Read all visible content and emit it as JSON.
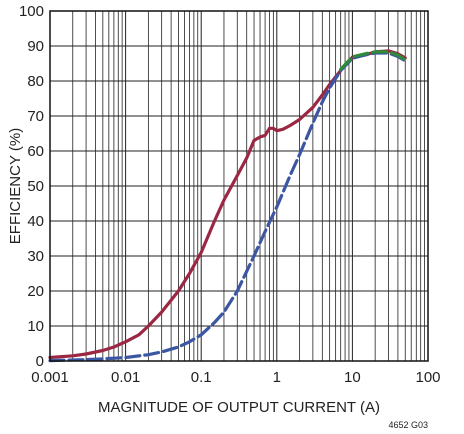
{
  "chart_data": {
    "type": "line",
    "title": "",
    "xlabel": "MAGNITUDE OF OUTPUT CURRENT (A)",
    "ylabel": "EFFICIENCY (%)",
    "xscale": "log",
    "xlim": [
      0.001,
      100
    ],
    "ylim": [
      0,
      100
    ],
    "grid": true,
    "x_ticks": [
      0.001,
      0.01,
      0.1,
      1,
      10,
      100
    ],
    "x_tick_labels": [
      "0.001",
      "0.01",
      "0.1",
      "1",
      "10",
      "100"
    ],
    "y_ticks": [
      0,
      10,
      20,
      30,
      40,
      50,
      60,
      70,
      80,
      90,
      100
    ],
    "y_tick_labels": [
      "0",
      "10",
      "20",
      "30",
      "40",
      "50",
      "60",
      "70",
      "80",
      "90",
      "100"
    ],
    "code_label": "4652 G03",
    "series": [
      {
        "color": "#9b2743",
        "style": "solid",
        "points": [
          [
            0.001,
            1
          ],
          [
            0.002,
            1.5
          ],
          [
            0.003,
            2
          ],
          [
            0.005,
            3
          ],
          [
            0.007,
            4
          ],
          [
            0.01,
            5.5
          ],
          [
            0.015,
            7.5
          ],
          [
            0.02,
            10
          ],
          [
            0.03,
            14
          ],
          [
            0.05,
            20
          ],
          [
            0.07,
            25
          ],
          [
            0.1,
            31
          ],
          [
            0.15,
            40
          ],
          [
            0.2,
            46
          ],
          [
            0.3,
            53
          ],
          [
            0.4,
            58
          ],
          [
            0.5,
            63
          ],
          [
            0.6,
            64
          ],
          [
            0.7,
            64.5
          ],
          [
            0.8,
            66.5
          ],
          [
            0.9,
            66.5
          ],
          [
            1.0,
            65.8
          ],
          [
            1.2,
            66.2
          ],
          [
            1.5,
            67.3
          ],
          [
            2,
            69
          ],
          [
            3,
            72.5
          ],
          [
            4,
            76
          ],
          [
            5,
            79
          ],
          [
            7,
            83
          ],
          [
            10,
            86.8
          ],
          [
            15,
            87.5
          ],
          [
            20,
            88.3
          ],
          [
            30,
            88.6
          ],
          [
            40,
            87.8
          ],
          [
            50,
            86.6
          ]
        ]
      },
      {
        "color": "#3b56a3",
        "style": "dashed",
        "points": [
          [
            0.001,
            0.1
          ],
          [
            0.003,
            0.4
          ],
          [
            0.005,
            0.6
          ],
          [
            0.01,
            1
          ],
          [
            0.02,
            1.8
          ],
          [
            0.03,
            2.6
          ],
          [
            0.05,
            4
          ],
          [
            0.07,
            5.5
          ],
          [
            0.1,
            7.5
          ],
          [
            0.15,
            11
          ],
          [
            0.2,
            14
          ],
          [
            0.3,
            20
          ],
          [
            0.5,
            30
          ],
          [
            0.7,
            37
          ],
          [
            1,
            44
          ],
          [
            1.5,
            53
          ],
          [
            2,
            59
          ],
          [
            3,
            68
          ],
          [
            4,
            74
          ],
          [
            5,
            78
          ],
          [
            7,
            83
          ],
          [
            10,
            86.5
          ],
          [
            15,
            87.5
          ],
          [
            20,
            88
          ],
          [
            30,
            88
          ],
          [
            40,
            87
          ],
          [
            50,
            85.8
          ]
        ]
      },
      {
        "color": "#2f8a3a",
        "style": "dashed",
        "points": [
          [
            7,
            83.3
          ],
          [
            10,
            86.9
          ],
          [
            15,
            87.8
          ],
          [
            20,
            88.3
          ],
          [
            30,
            88.3
          ],
          [
            40,
            87.4
          ],
          [
            50,
            86
          ]
        ]
      }
    ]
  }
}
